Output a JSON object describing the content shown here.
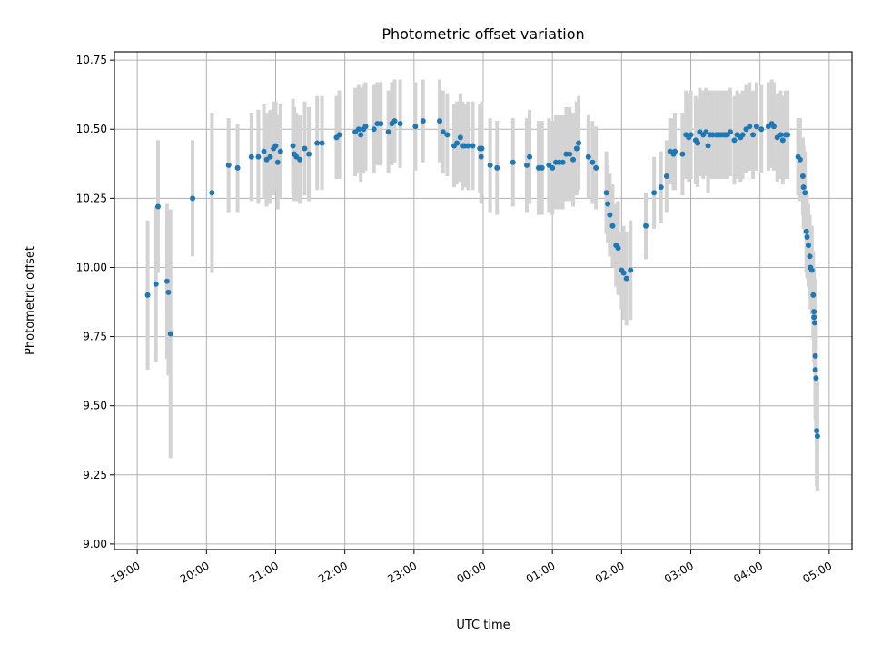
{
  "chart_data": {
    "type": "scatter",
    "title": "Photometric offset variation",
    "xlabel": "UTC time",
    "ylabel": "Photometric offset",
    "x_unit": "hours (UTC, continuing past midnight)",
    "xlim": [
      18.67,
      29.33
    ],
    "ylim": [
      8.98,
      10.78
    ],
    "xticks": [
      19,
      20,
      21,
      22,
      23,
      24,
      25,
      26,
      27,
      28,
      29
    ],
    "xtick_labels": [
      "19:00",
      "20:00",
      "21:00",
      "22:00",
      "23:00",
      "00:00",
      "01:00",
      "02:00",
      "03:00",
      "04:00",
      "05:00"
    ],
    "yticks": [
      9.0,
      9.25,
      9.5,
      9.75,
      10.0,
      10.25,
      10.5,
      10.75
    ],
    "ytick_labels": [
      "9.00",
      "9.25",
      "9.50",
      "9.75",
      "10.00",
      "10.25",
      "10.50",
      "10.75"
    ],
    "grid": true,
    "marker_color": "#1f77b4",
    "errorbar_color": "#d3d3d3",
    "points": [
      [
        19.15,
        9.9,
        0.27
      ],
      [
        19.27,
        9.94,
        0.28
      ],
      [
        19.3,
        10.22,
        0.24
      ],
      [
        19.43,
        9.95,
        0.28
      ],
      [
        19.45,
        9.91,
        0.3
      ],
      [
        19.48,
        9.76,
        0.45
      ],
      [
        19.8,
        10.25,
        0.21
      ],
      [
        20.08,
        10.27,
        0.29
      ],
      [
        20.32,
        10.37,
        0.17
      ],
      [
        20.45,
        10.36,
        0.16
      ],
      [
        20.65,
        10.4,
        0.16
      ],
      [
        20.75,
        10.4,
        0.17
      ],
      [
        20.83,
        10.42,
        0.17
      ],
      [
        20.87,
        10.39,
        0.17
      ],
      [
        20.92,
        10.4,
        0.17
      ],
      [
        20.97,
        10.43,
        0.17
      ],
      [
        21.0,
        10.44,
        0.16
      ],
      [
        21.03,
        10.38,
        0.17
      ],
      [
        21.07,
        10.42,
        0.17
      ],
      [
        21.25,
        10.44,
        0.17
      ],
      [
        21.27,
        10.41,
        0.17
      ],
      [
        21.3,
        10.4,
        0.16
      ],
      [
        21.35,
        10.39,
        0.16
      ],
      [
        21.42,
        10.43,
        0.17
      ],
      [
        21.48,
        10.41,
        0.17
      ],
      [
        21.6,
        10.45,
        0.17
      ],
      [
        21.67,
        10.45,
        0.17
      ],
      [
        21.88,
        10.47,
        0.15
      ],
      [
        21.92,
        10.48,
        0.16
      ],
      [
        22.15,
        10.49,
        0.16
      ],
      [
        22.2,
        10.5,
        0.16
      ],
      [
        22.23,
        10.48,
        0.17
      ],
      [
        22.27,
        10.5,
        0.16
      ],
      [
        22.3,
        10.51,
        0.16
      ],
      [
        22.42,
        10.5,
        0.16
      ],
      [
        22.47,
        10.52,
        0.15
      ],
      [
        22.52,
        10.52,
        0.15
      ],
      [
        22.63,
        10.49,
        0.15
      ],
      [
        22.68,
        10.52,
        0.15
      ],
      [
        22.72,
        10.53,
        0.15
      ],
      [
        22.8,
        10.52,
        0.16
      ],
      [
        23.02,
        10.51,
        0.16
      ],
      [
        23.13,
        10.53,
        0.15
      ],
      [
        23.37,
        10.53,
        0.15
      ],
      [
        23.42,
        10.49,
        0.15
      ],
      [
        23.48,
        10.48,
        0.15
      ],
      [
        23.58,
        10.44,
        0.15
      ],
      [
        23.62,
        10.45,
        0.15
      ],
      [
        23.67,
        10.47,
        0.16
      ],
      [
        23.7,
        10.44,
        0.16
      ],
      [
        23.73,
        10.44,
        0.15
      ],
      [
        23.78,
        10.44,
        0.16
      ],
      [
        23.85,
        10.44,
        0.16
      ],
      [
        23.95,
        10.43,
        0.16
      ],
      [
        23.97,
        10.4,
        0.17
      ],
      [
        23.98,
        10.43,
        0.17
      ],
      [
        24.1,
        10.37,
        0.17
      ],
      [
        24.2,
        10.36,
        0.17
      ],
      [
        24.43,
        10.38,
        0.16
      ],
      [
        24.63,
        10.37,
        0.17
      ],
      [
        24.67,
        10.4,
        0.17
      ],
      [
        24.8,
        10.36,
        0.17
      ],
      [
        24.85,
        10.36,
        0.17
      ],
      [
        24.95,
        10.37,
        0.17
      ],
      [
        25.0,
        10.36,
        0.17
      ],
      [
        25.05,
        10.38,
        0.17
      ],
      [
        25.1,
        10.38,
        0.17
      ],
      [
        25.15,
        10.38,
        0.17
      ],
      [
        25.2,
        10.41,
        0.17
      ],
      [
        25.25,
        10.41,
        0.17
      ],
      [
        25.3,
        10.39,
        0.17
      ],
      [
        25.35,
        10.43,
        0.17
      ],
      [
        25.38,
        10.45,
        0.17
      ],
      [
        25.52,
        10.4,
        0.15
      ],
      [
        25.58,
        10.38,
        0.15
      ],
      [
        25.63,
        10.36,
        0.15
      ],
      [
        25.78,
        10.27,
        0.15
      ],
      [
        25.8,
        10.23,
        0.14
      ],
      [
        25.83,
        10.19,
        0.15
      ],
      [
        25.87,
        10.15,
        0.15
      ],
      [
        25.92,
        10.08,
        0.15
      ],
      [
        25.95,
        10.07,
        0.17
      ],
      [
        26.0,
        9.99,
        0.14
      ],
      [
        26.03,
        9.98,
        0.17
      ],
      [
        26.07,
        9.96,
        0.17
      ],
      [
        26.13,
        9.99,
        0.18
      ],
      [
        26.35,
        10.15,
        0.12
      ],
      [
        26.47,
        10.27,
        0.13
      ],
      [
        26.57,
        10.29,
        0.13
      ],
      [
        26.65,
        10.33,
        0.13
      ],
      [
        26.7,
        10.42,
        0.12
      ],
      [
        26.75,
        10.41,
        0.13
      ],
      [
        26.77,
        10.42,
        0.14
      ],
      [
        26.88,
        10.41,
        0.15
      ],
      [
        26.93,
        10.48,
        0.16
      ],
      [
        26.97,
        10.47,
        0.16
      ],
      [
        27.0,
        10.48,
        0.16
      ],
      [
        27.07,
        10.46,
        0.16
      ],
      [
        27.1,
        10.45,
        0.16
      ],
      [
        27.13,
        10.49,
        0.16
      ],
      [
        27.18,
        10.48,
        0.16
      ],
      [
        27.22,
        10.49,
        0.16
      ],
      [
        27.25,
        10.44,
        0.17
      ],
      [
        27.28,
        10.48,
        0.16
      ],
      [
        27.32,
        10.48,
        0.16
      ],
      [
        27.37,
        10.48,
        0.16
      ],
      [
        27.4,
        10.48,
        0.16
      ],
      [
        27.43,
        10.48,
        0.16
      ],
      [
        27.47,
        10.48,
        0.16
      ],
      [
        27.5,
        10.48,
        0.16
      ],
      [
        27.53,
        10.48,
        0.16
      ],
      [
        27.57,
        10.49,
        0.16
      ],
      [
        27.63,
        10.46,
        0.16
      ],
      [
        27.67,
        10.48,
        0.16
      ],
      [
        27.72,
        10.47,
        0.16
      ],
      [
        27.75,
        10.48,
        0.16
      ],
      [
        27.8,
        10.5,
        0.16
      ],
      [
        27.85,
        10.51,
        0.16
      ],
      [
        27.9,
        10.48,
        0.16
      ],
      [
        27.95,
        10.51,
        0.16
      ],
      [
        28.02,
        10.5,
        0.16
      ],
      [
        28.12,
        10.51,
        0.16
      ],
      [
        28.17,
        10.52,
        0.16
      ],
      [
        28.2,
        10.51,
        0.16
      ],
      [
        28.25,
        10.47,
        0.16
      ],
      [
        28.3,
        10.48,
        0.16
      ],
      [
        28.33,
        10.46,
        0.16
      ],
      [
        28.37,
        10.48,
        0.16
      ],
      [
        28.4,
        10.48,
        0.16
      ],
      [
        28.55,
        10.4,
        0.14
      ],
      [
        28.58,
        10.39,
        0.15
      ],
      [
        28.62,
        10.33,
        0.14
      ],
      [
        28.63,
        10.29,
        0.15
      ],
      [
        28.65,
        10.27,
        0.15
      ],
      [
        28.67,
        10.13,
        0.15
      ],
      [
        28.68,
        10.11,
        0.15
      ],
      [
        28.7,
        10.08,
        0.15
      ],
      [
        28.72,
        10.04,
        0.15
      ],
      [
        28.73,
        10.0,
        0.15
      ],
      [
        28.75,
        9.99,
        0.16
      ],
      [
        28.77,
        9.9,
        0.16
      ],
      [
        28.78,
        9.84,
        0.16
      ],
      [
        28.78,
        9.82,
        0.16
      ],
      [
        28.79,
        9.8,
        0.16
      ],
      [
        28.8,
        9.68,
        0.18
      ],
      [
        28.8,
        9.63,
        0.18
      ],
      [
        28.81,
        9.6,
        0.2
      ],
      [
        28.82,
        9.41,
        0.2
      ],
      [
        28.83,
        9.39,
        0.2
      ]
    ]
  }
}
